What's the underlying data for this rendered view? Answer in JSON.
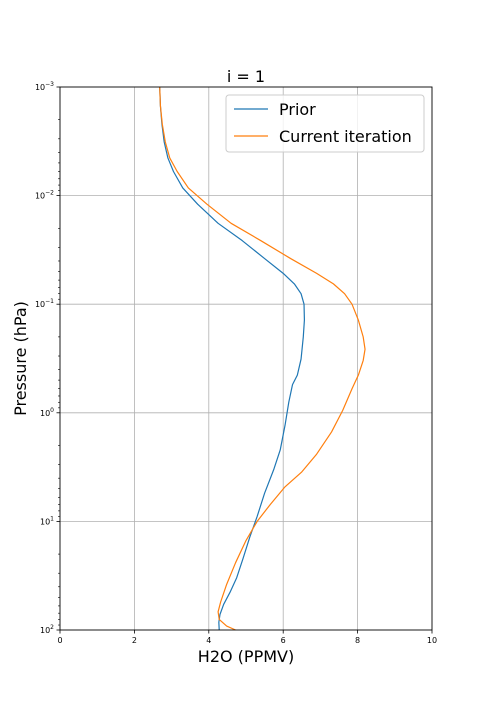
{
  "chart_data": {
    "type": "line",
    "title": "i = 1",
    "xlabel": "H2O (PPMV)",
    "ylabel": "Pressure (hPa)",
    "xlim": [
      0,
      10
    ],
    "ylim": [
      100,
      0.001
    ],
    "y_scale": "log",
    "y_inverted": true,
    "grid": true,
    "legend_position": "upper right",
    "x_ticks": [
      0,
      2,
      4,
      6,
      8,
      10
    ],
    "x_tick_labels": [
      "0",
      "2",
      "4",
      "6",
      "8",
      "10"
    ],
    "y_ticks": [
      0.001,
      0.01,
      0.1,
      1,
      10,
      100
    ],
    "y_tick_labels": [
      {
        "base": "10",
        "exp": "−3"
      },
      {
        "base": "10",
        "exp": "−2"
      },
      {
        "base": "10",
        "exp": "−1"
      },
      {
        "base": "10",
        "exp": "0"
      },
      {
        "base": "10",
        "exp": "1"
      },
      {
        "base": "10",
        "exp": "2"
      }
    ],
    "series": [
      {
        "name": "Prior",
        "color": "#1f77b4",
        "points": [
          [
            2.68,
            0.001
          ],
          [
            2.7,
            0.0015
          ],
          [
            2.74,
            0.0022
          ],
          [
            2.8,
            0.0032
          ],
          [
            2.9,
            0.0045
          ],
          [
            3.05,
            0.006
          ],
          [
            3.3,
            0.0085
          ],
          [
            3.7,
            0.012
          ],
          [
            4.25,
            0.018
          ],
          [
            4.9,
            0.026
          ],
          [
            5.5,
            0.038
          ],
          [
            6.0,
            0.052
          ],
          [
            6.3,
            0.065
          ],
          [
            6.48,
            0.08
          ],
          [
            6.56,
            0.1
          ],
          [
            6.57,
            0.14
          ],
          [
            6.54,
            0.2
          ],
          [
            6.48,
            0.32
          ],
          [
            6.38,
            0.45
          ],
          [
            6.25,
            0.55
          ],
          [
            6.15,
            0.8
          ],
          [
            6.05,
            1.3
          ],
          [
            5.92,
            2.2
          ],
          [
            5.75,
            3.3
          ],
          [
            5.5,
            5.5
          ],
          [
            5.3,
            9.0
          ],
          [
            5.1,
            14
          ],
          [
            4.92,
            22
          ],
          [
            4.75,
            33
          ],
          [
            4.57,
            45
          ],
          [
            4.4,
            58
          ],
          [
            4.3,
            72
          ],
          [
            4.27,
            85
          ],
          [
            4.28,
            100
          ]
        ]
      },
      {
        "name": "Current iteration",
        "color": "#ff7f0e",
        "points": [
          [
            2.68,
            0.001
          ],
          [
            2.7,
            0.0015
          ],
          [
            2.75,
            0.0022
          ],
          [
            2.83,
            0.0032
          ],
          [
            2.95,
            0.0045
          ],
          [
            3.15,
            0.006
          ],
          [
            3.45,
            0.0085
          ],
          [
            3.95,
            0.012
          ],
          [
            4.6,
            0.018
          ],
          [
            5.4,
            0.026
          ],
          [
            6.2,
            0.038
          ],
          [
            6.9,
            0.052
          ],
          [
            7.35,
            0.065
          ],
          [
            7.65,
            0.08
          ],
          [
            7.85,
            0.1
          ],
          [
            8.02,
            0.14
          ],
          [
            8.15,
            0.2
          ],
          [
            8.2,
            0.26
          ],
          [
            8.15,
            0.33
          ],
          [
            8.02,
            0.45
          ],
          [
            7.85,
            0.6
          ],
          [
            7.6,
            0.95
          ],
          [
            7.3,
            1.5
          ],
          [
            6.9,
            2.4
          ],
          [
            6.5,
            3.5
          ],
          [
            6.05,
            4.8
          ],
          [
            5.65,
            7.0
          ],
          [
            5.3,
            10
          ],
          [
            5.0,
            15
          ],
          [
            4.72,
            24
          ],
          [
            4.48,
            38
          ],
          [
            4.32,
            55
          ],
          [
            4.25,
            68
          ],
          [
            4.28,
            80
          ],
          [
            4.48,
            92
          ],
          [
            4.72,
            100
          ]
        ]
      }
    ]
  }
}
